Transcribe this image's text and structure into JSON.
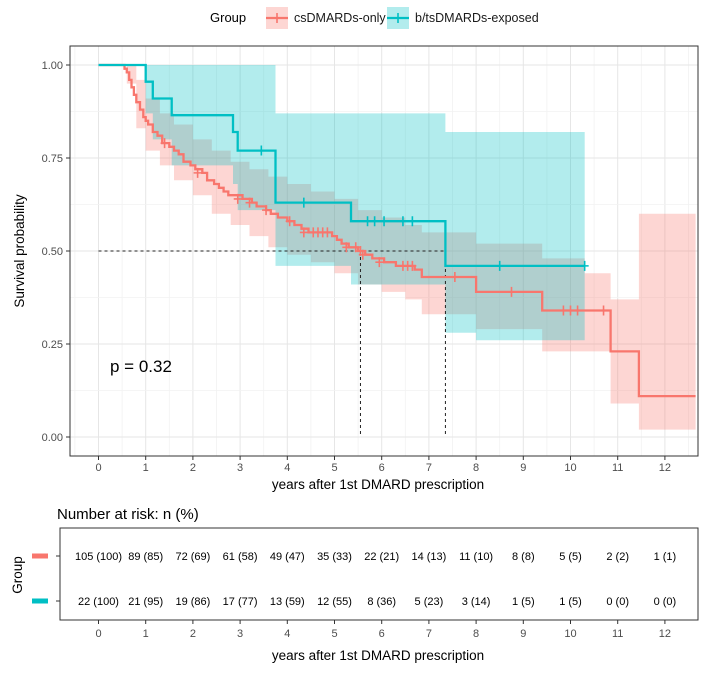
{
  "chart_data": [
    {
      "type": "line",
      "subtype": "kaplan-meier",
      "title": "",
      "legend": {
        "title": "Group",
        "position": "top",
        "entries": [
          "csDMARDs-only",
          "b/tsDMARDs-exposed"
        ]
      },
      "xlabel": "years after 1st DMARD prescription",
      "ylabel": "Survival probability",
      "xlim": [
        -0.6,
        12.6
      ],
      "ylim": [
        -0.05,
        1.05
      ],
      "xticks": [
        0,
        1,
        2,
        3,
        4,
        5,
        6,
        7,
        8,
        9,
        10,
        11,
        12
      ],
      "yticks": [
        0.0,
        0.25,
        0.5,
        0.75,
        1.0
      ],
      "ytick_labels": [
        "0.00",
        "0.25",
        "0.50",
        "0.75",
        "1.00"
      ],
      "grid": true,
      "annotation": "p = 0.32",
      "median_reference": {
        "y": 0.5,
        "x": [
          5.55,
          7.35
        ]
      },
      "series": [
        {
          "name": "csDMARDs-only",
          "color": "#F8766D",
          "fill": "#F8766D",
          "steps": [
            [
              0,
              1.0
            ],
            [
              0.55,
              0.99
            ],
            [
              0.6,
              0.98
            ],
            [
              0.65,
              0.96
            ],
            [
              0.7,
              0.94
            ],
            [
              0.75,
              0.92
            ],
            [
              0.8,
              0.9
            ],
            [
              0.88,
              0.88
            ],
            [
              0.95,
              0.86
            ],
            [
              1.0,
              0.85
            ],
            [
              1.05,
              0.84
            ],
            [
              1.15,
              0.82
            ],
            [
              1.25,
              0.81
            ],
            [
              1.35,
              0.79
            ],
            [
              1.5,
              0.78
            ],
            [
              1.6,
              0.77
            ],
            [
              1.7,
              0.76
            ],
            [
              1.8,
              0.74
            ],
            [
              1.95,
              0.73
            ],
            [
              2.05,
              0.72
            ],
            [
              2.2,
              0.71
            ],
            [
              2.3,
              0.69
            ],
            [
              2.45,
              0.68
            ],
            [
              2.55,
              0.67
            ],
            [
              2.65,
              0.66
            ],
            [
              2.75,
              0.65
            ],
            [
              3.05,
              0.64
            ],
            [
              3.25,
              0.63
            ],
            [
              3.35,
              0.62
            ],
            [
              3.55,
              0.61
            ],
            [
              3.65,
              0.6
            ],
            [
              3.8,
              0.59
            ],
            [
              4.0,
              0.58
            ],
            [
              4.15,
              0.57
            ],
            [
              4.3,
              0.56
            ],
            [
              4.45,
              0.55
            ],
            [
              4.95,
              0.54
            ],
            [
              5.05,
              0.53
            ],
            [
              5.15,
              0.52
            ],
            [
              5.3,
              0.51
            ],
            [
              5.5,
              0.5
            ],
            [
              5.65,
              0.49
            ],
            [
              5.8,
              0.48
            ],
            [
              6.05,
              0.47
            ],
            [
              6.3,
              0.46
            ],
            [
              6.7,
              0.45
            ],
            [
              6.85,
              0.43
            ],
            [
              8.0,
              0.39
            ],
            [
              9.4,
              0.34
            ],
            [
              10.85,
              0.23
            ],
            [
              11.45,
              0.11
            ]
          ],
          "end_x": 12.65,
          "ci_upper": [
            [
              0,
              1.0
            ],
            [
              0.6,
              1.0
            ],
            [
              0.8,
              0.96
            ],
            [
              1.0,
              0.91
            ],
            [
              1.3,
              0.87
            ],
            [
              1.6,
              0.84
            ],
            [
              2.0,
              0.8
            ],
            [
              2.4,
              0.77
            ],
            [
              2.8,
              0.74
            ],
            [
              3.2,
              0.72
            ],
            [
              3.6,
              0.7
            ],
            [
              4.0,
              0.68
            ],
            [
              4.5,
              0.66
            ],
            [
              5.0,
              0.64
            ],
            [
              5.5,
              0.61
            ],
            [
              6.0,
              0.59
            ],
            [
              6.5,
              0.57
            ],
            [
              6.85,
              0.55
            ],
            [
              8.0,
              0.52
            ],
            [
              9.4,
              0.48
            ],
            [
              10.3,
              0.44
            ],
            [
              10.85,
              0.37
            ],
            [
              11.45,
              0.6
            ]
          ],
          "ci_lower": [
            [
              0,
              1.0
            ],
            [
              0.6,
              0.95
            ],
            [
              0.8,
              0.83
            ],
            [
              1.0,
              0.77
            ],
            [
              1.3,
              0.73
            ],
            [
              1.6,
              0.69
            ],
            [
              2.0,
              0.65
            ],
            [
              2.4,
              0.6
            ],
            [
              2.8,
              0.57
            ],
            [
              3.2,
              0.54
            ],
            [
              3.6,
              0.51
            ],
            [
              4.0,
              0.49
            ],
            [
              4.5,
              0.47
            ],
            [
              5.0,
              0.44
            ],
            [
              5.5,
              0.41
            ],
            [
              6.0,
              0.39
            ],
            [
              6.5,
              0.37
            ],
            [
              6.85,
              0.33
            ],
            [
              8.0,
              0.29
            ],
            [
              9.4,
              0.23
            ],
            [
              10.85,
              0.09
            ],
            [
              11.45,
              0.02
            ]
          ],
          "censored": [
            [
              1.4,
              0.79
            ],
            [
              2.1,
              0.71
            ],
            [
              2.95,
              0.64
            ],
            [
              3.2,
              0.63
            ],
            [
              3.55,
              0.61
            ],
            [
              4.05,
              0.58
            ],
            [
              4.35,
              0.55
            ],
            [
              4.55,
              0.55
            ],
            [
              4.65,
              0.55
            ],
            [
              4.75,
              0.55
            ],
            [
              4.85,
              0.55
            ],
            [
              5.25,
              0.51
            ],
            [
              5.45,
              0.51
            ],
            [
              5.55,
              0.5
            ],
            [
              5.6,
              0.49
            ],
            [
              5.95,
              0.47
            ],
            [
              6.45,
              0.46
            ],
            [
              6.55,
              0.46
            ],
            [
              6.65,
              0.46
            ],
            [
              7.55,
              0.43
            ],
            [
              8.75,
              0.39
            ],
            [
              9.85,
              0.34
            ],
            [
              10.0,
              0.34
            ],
            [
              10.15,
              0.34
            ],
            [
              10.7,
              0.34
            ]
          ]
        },
        {
          "name": "b/tsDMARDs-exposed",
          "color": "#00BFC4",
          "fill": "#00BFC4",
          "steps": [
            [
              0,
              1.0
            ],
            [
              1.0,
              0.955
            ],
            [
              1.15,
              0.91
            ],
            [
              1.55,
              0.865
            ],
            [
              2.85,
              0.82
            ],
            [
              2.95,
              0.77
            ],
            [
              3.75,
              0.63
            ],
            [
              5.35,
              0.58
            ],
            [
              7.35,
              0.46
            ]
          ],
          "end_x": 10.3,
          "ci_upper": [
            [
              0,
              1.0
            ],
            [
              2.95,
              1.0
            ],
            [
              3.75,
              0.87
            ],
            [
              5.35,
              0.87
            ],
            [
              7.35,
              0.82
            ]
          ],
          "ci_lower": [
            [
              0,
              1.0
            ],
            [
              1.0,
              0.87
            ],
            [
              1.15,
              0.8
            ],
            [
              1.55,
              0.73
            ],
            [
              2.85,
              0.68
            ],
            [
              2.95,
              0.61
            ],
            [
              3.75,
              0.46
            ],
            [
              5.35,
              0.41
            ],
            [
              7.35,
              0.28
            ],
            [
              8.0,
              0.26
            ]
          ],
          "censored": [
            [
              3.45,
              0.77
            ],
            [
              4.35,
              0.63
            ],
            [
              5.7,
              0.58
            ],
            [
              5.85,
              0.58
            ],
            [
              6.05,
              0.58
            ],
            [
              6.45,
              0.58
            ],
            [
              6.65,
              0.58
            ],
            [
              8.5,
              0.46
            ],
            [
              10.3,
              0.46
            ]
          ]
        }
      ]
    },
    {
      "type": "table",
      "title": "Number at risk: n (%)",
      "xlabel": "years after 1st DMARD prescription",
      "ylabel": "Group",
      "x": [
        0,
        1,
        2,
        3,
        4,
        5,
        6,
        7,
        8,
        9,
        10,
        11,
        12
      ],
      "rows": [
        {
          "name": "csDMARDs-only",
          "color": "#F8766D",
          "values": [
            "105 (100)",
            "89 (85)",
            "72 (69)",
            "61 (58)",
            "49 (47)",
            "35 (33)",
            "22 (21)",
            "14 (13)",
            "11 (10)",
            "8 (8)",
            "5 (5)",
            "2 (2)",
            "1 (1)"
          ]
        },
        {
          "name": "b/tsDMARDs-exposed",
          "color": "#00BFC4",
          "values": [
            "22 (100)",
            "21 (95)",
            "19 (86)",
            "17 (77)",
            "13 (59)",
            "12 (55)",
            "8 (36)",
            "5 (23)",
            "3 (14)",
            "1 (5)",
            "1 (5)",
            "0 (0)",
            "0 (0)"
          ]
        }
      ]
    }
  ]
}
